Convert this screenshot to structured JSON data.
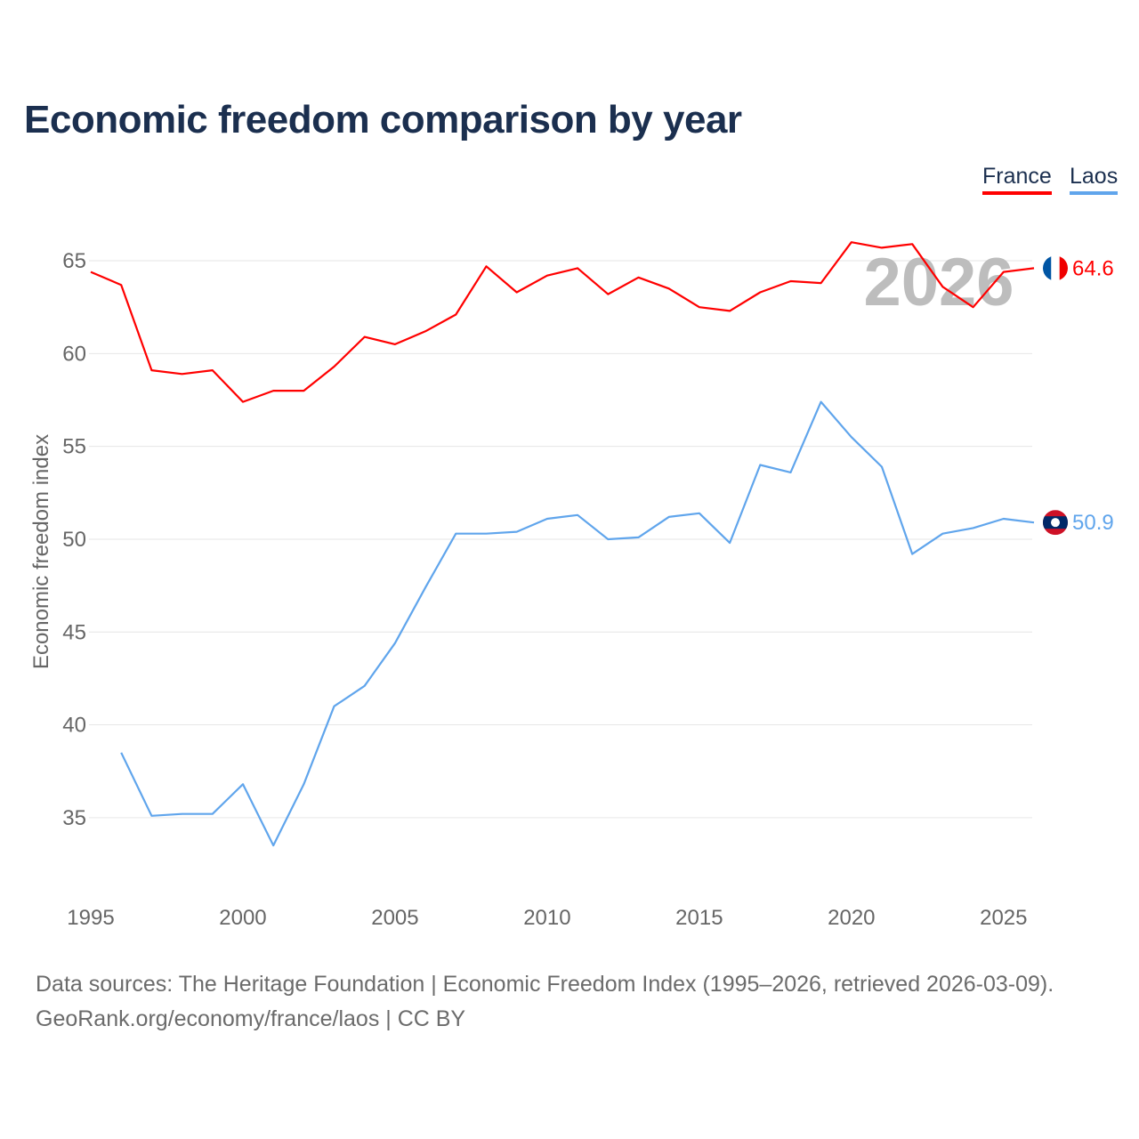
{
  "title": "Economic freedom comparison by year",
  "footer": {
    "line1": "Data sources: The Heritage Foundation | Economic Freedom Index (1995–2026, retrieved 2026-03-09).",
    "line2": "GeoRank.org/economy/france/laos | CC BY"
  },
  "chart_data": {
    "type": "line",
    "title": "Economic freedom comparison by year",
    "xlabel": "",
    "ylabel": "Economic freedom index",
    "watermark_year": "2026",
    "xlim": [
      1995,
      2026
    ],
    "ylim": [
      31,
      67.5
    ],
    "xticks": [
      1995,
      2000,
      2005,
      2010,
      2015,
      2020,
      2025
    ],
    "yticks": [
      35,
      40,
      45,
      50,
      55,
      60,
      65
    ],
    "grid": true,
    "legend": "top-right",
    "series": [
      {
        "name": "France",
        "color": "#ff0000",
        "end_label": "64.6",
        "flag": "france",
        "x": [
          1995,
          1996,
          1997,
          1998,
          1999,
          2000,
          2001,
          2002,
          2003,
          2004,
          2005,
          2006,
          2007,
          2008,
          2009,
          2010,
          2011,
          2012,
          2013,
          2014,
          2015,
          2016,
          2017,
          2018,
          2019,
          2020,
          2021,
          2022,
          2023,
          2024,
          2025,
          2026
        ],
        "values": [
          64.4,
          63.7,
          59.1,
          58.9,
          59.1,
          57.4,
          58.0,
          58.0,
          59.3,
          60.9,
          60.5,
          61.2,
          62.1,
          64.7,
          63.3,
          64.2,
          64.6,
          63.2,
          64.1,
          63.5,
          62.5,
          62.3,
          63.3,
          63.9,
          63.8,
          66.0,
          65.7,
          65.9,
          63.6,
          62.5,
          64.4,
          64.6
        ]
      },
      {
        "name": "Laos",
        "color": "#60a5ec",
        "end_label": "50.9",
        "flag": "laos",
        "x": [
          1996,
          1997,
          1998,
          1999,
          2000,
          2001,
          2002,
          2003,
          2004,
          2005,
          2006,
          2007,
          2008,
          2009,
          2010,
          2011,
          2012,
          2013,
          2014,
          2015,
          2016,
          2017,
          2018,
          2019,
          2020,
          2021,
          2022,
          2023,
          2024,
          2025,
          2026
        ],
        "values": [
          38.5,
          35.1,
          35.2,
          35.2,
          36.8,
          33.5,
          36.8,
          41.0,
          42.1,
          44.4,
          47.4,
          50.3,
          50.3,
          50.4,
          51.1,
          51.3,
          50.0,
          50.1,
          51.2,
          51.4,
          49.8,
          54.0,
          53.6,
          57.4,
          55.5,
          53.9,
          49.2,
          50.3,
          50.6,
          51.1,
          50.9
        ]
      }
    ]
  }
}
